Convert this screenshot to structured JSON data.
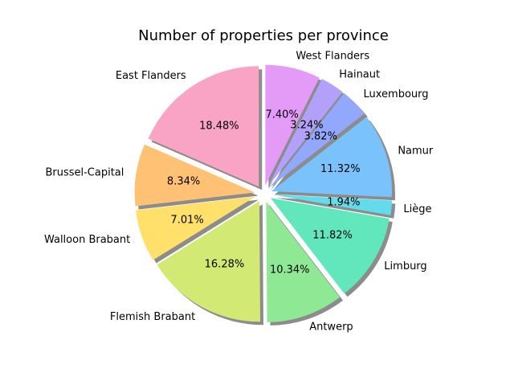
{
  "chart_data": {
    "type": "pie",
    "title": "Number of properties per province",
    "shadow": true,
    "start_angle_deg": 90,
    "direction": "counterclockwise",
    "slices": [
      {
        "label": "East Flanders",
        "value": 18.48,
        "pct_label": "18.48%",
        "color": "#f9a3c5"
      },
      {
        "label": "Brussel-Capital",
        "value": 8.34,
        "pct_label": "8.34%",
        "color": "#ffc174"
      },
      {
        "label": "Walloon Brabant",
        "value": 7.01,
        "pct_label": "7.01%",
        "color": "#ffe06a"
      },
      {
        "label": "Flemish Brabant",
        "value": 16.28,
        "pct_label": "16.28%",
        "color": "#d2ea74"
      },
      {
        "label": "Antwerp",
        "value": 10.34,
        "pct_label": "10.34%",
        "color": "#8fe893"
      },
      {
        "label": "Limburg",
        "value": 11.82,
        "pct_label": "11.82%",
        "color": "#62e6bc"
      },
      {
        "label": "Liège",
        "value": 1.94,
        "pct_label": "1.94%",
        "color": "#62dcea"
      },
      {
        "label": "Namur",
        "value": 11.32,
        "pct_label": "11.32%",
        "color": "#79c2fc"
      },
      {
        "label": "Luxembourg",
        "value": 3.82,
        "pct_label": "3.82%",
        "color": "#92a8fd"
      },
      {
        "label": "Hainaut",
        "value": 3.24,
        "pct_label": "3.24%",
        "color": "#b3a0fb"
      },
      {
        "label": "West Flanders",
        "value": 7.4,
        "pct_label": "7.40%",
        "color": "#e39bf7"
      }
    ]
  }
}
